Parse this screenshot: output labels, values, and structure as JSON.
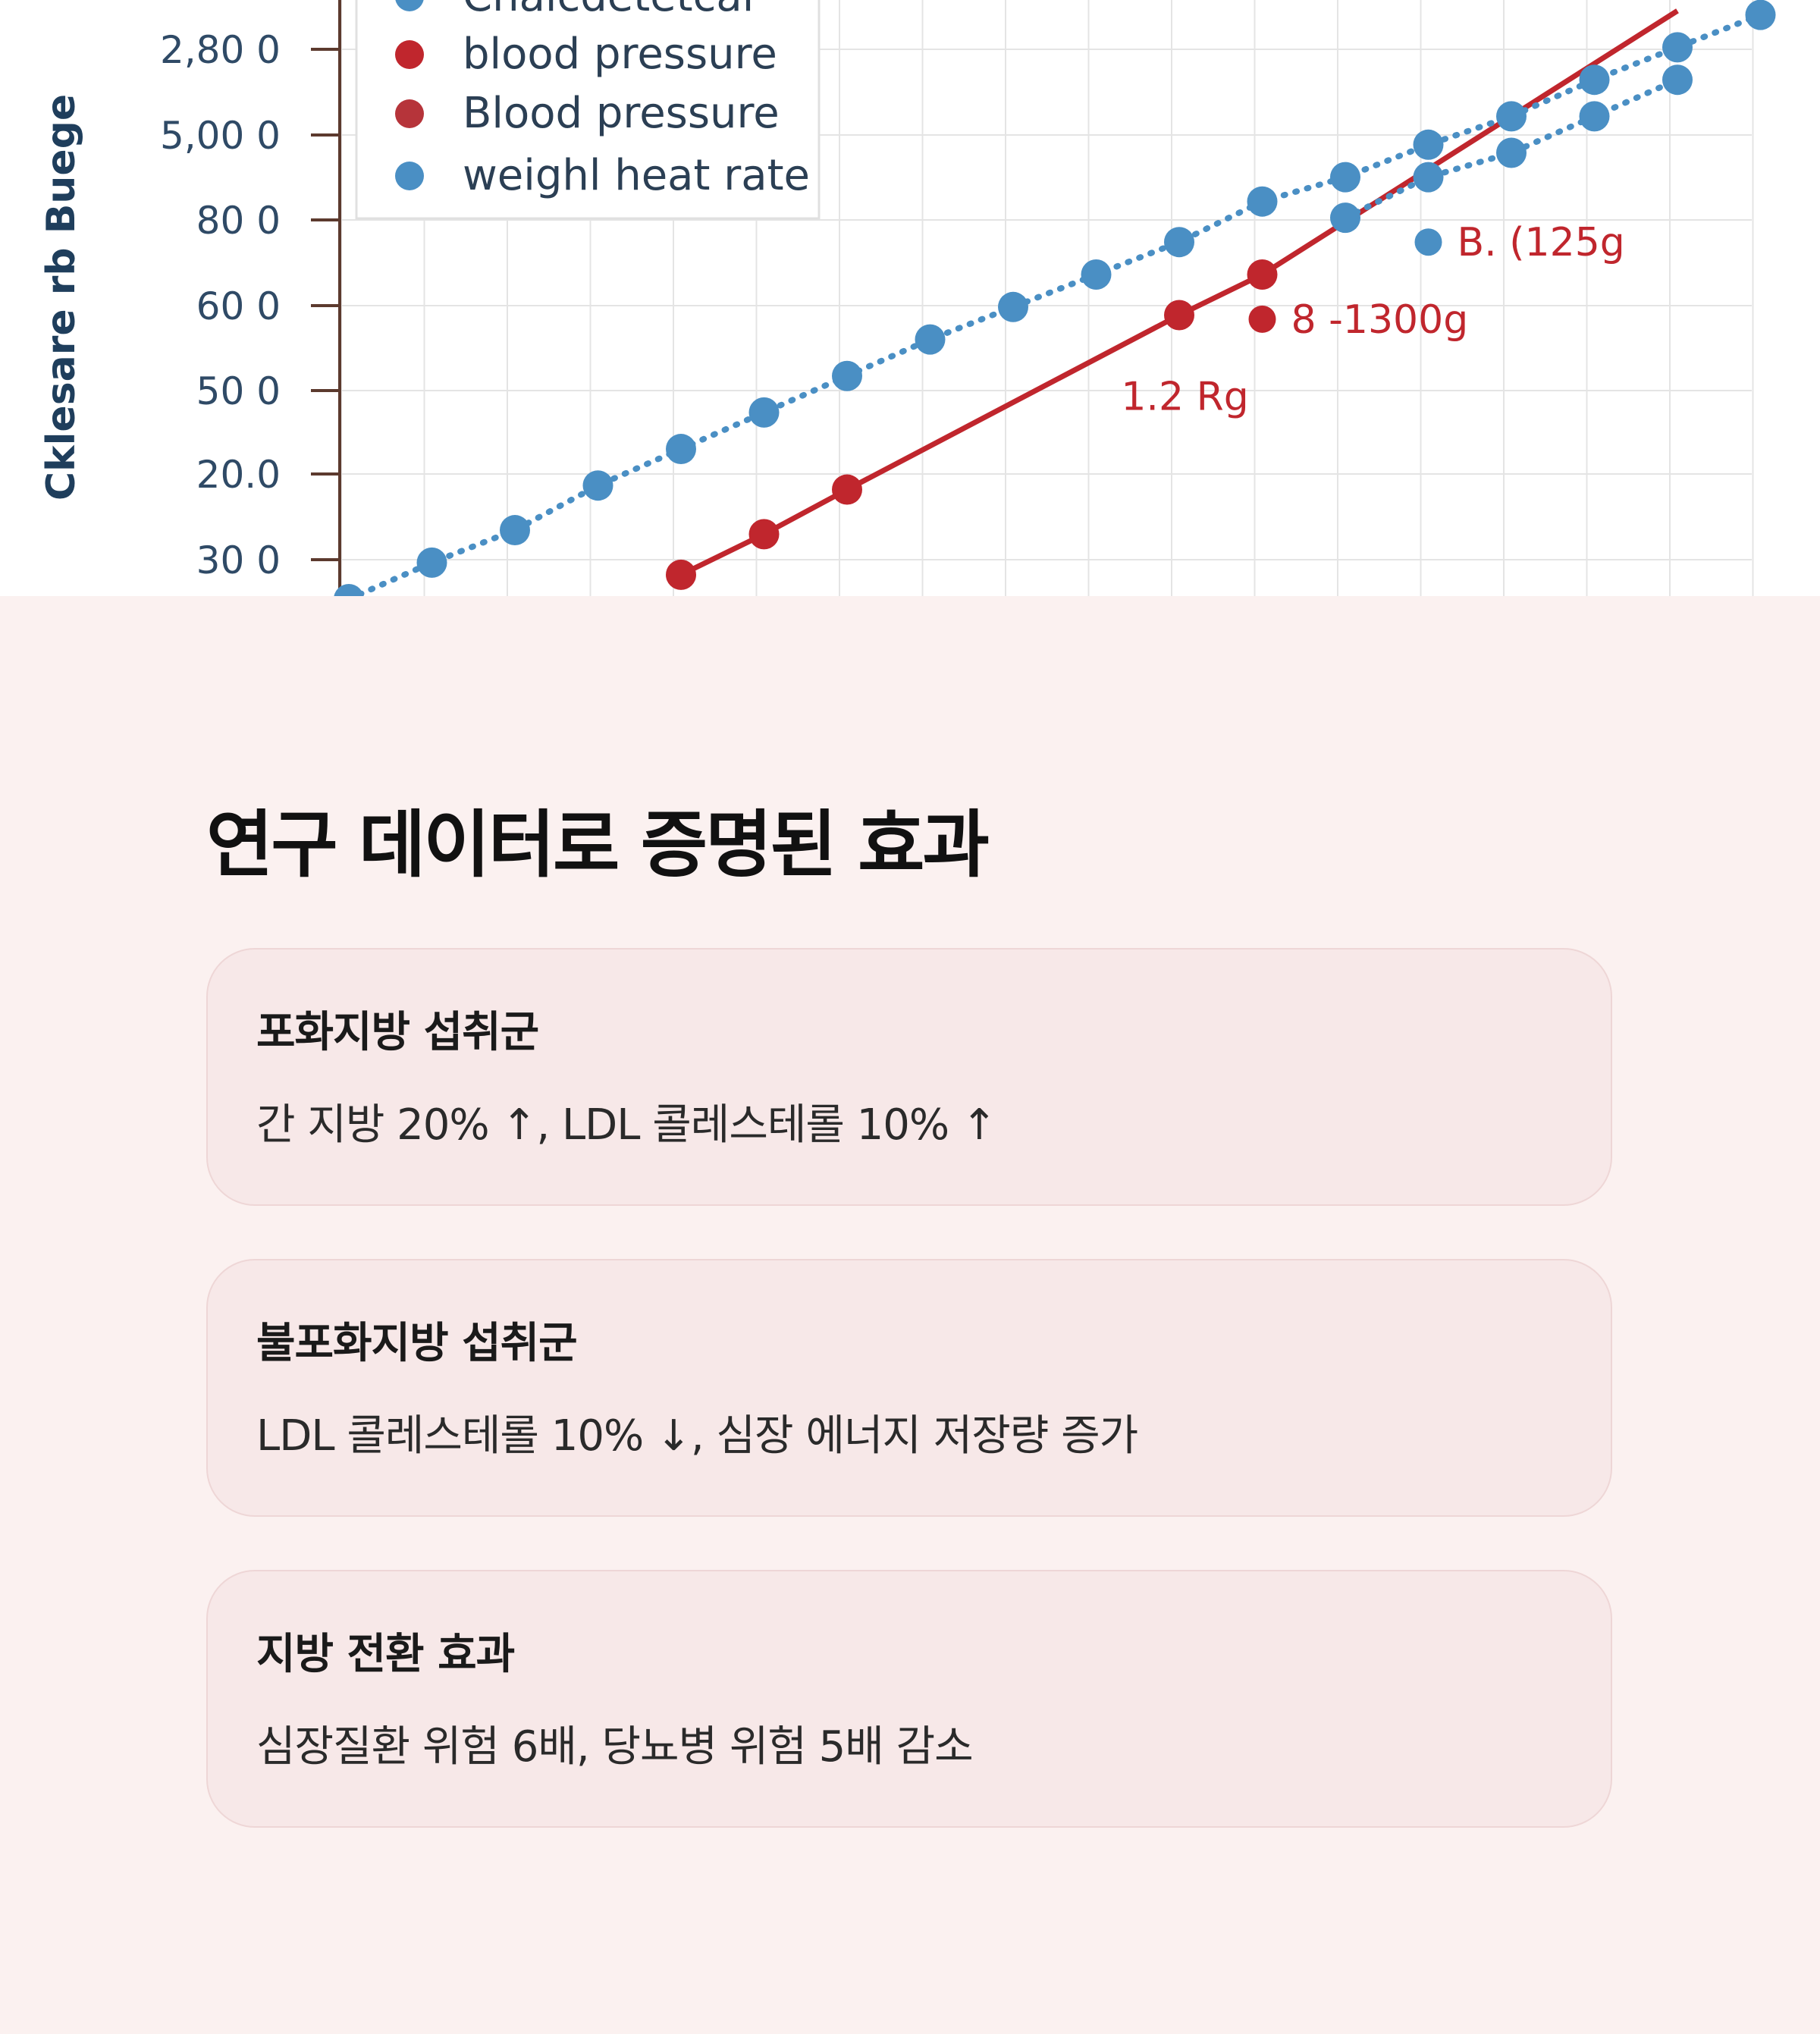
{
  "chart_data": {
    "type": "scatter",
    "ylabel": "Cklesare rb Buege",
    "y_ticks": [
      "2,80 0",
      "5,00 0",
      "80 0",
      "60 0",
      "50 0",
      "20.0",
      "30 0"
    ],
    "legend": {
      "placement": "top-left",
      "entries": [
        {
          "label": "Cnalcdetetcal",
          "color": "#4a8fc4"
        },
        {
          "label": "blood pressure",
          "color": "#c0262d"
        },
        {
          "label": "Blood pressure",
          "color": "#b6343a"
        },
        {
          "label": "weighl heat rate",
          "color": "#4a8fc4"
        }
      ]
    },
    "grid": true,
    "series": [
      {
        "name": "blood pressure",
        "color": "#c0262d",
        "line": "solid",
        "x": [
          4,
          5,
          6,
          10,
          11
        ],
        "y": [
          0.3,
          0.8,
          1.35,
          3.5,
          4.0
        ]
      },
      {
        "name": "weighl heat rate",
        "color": "#4a8fc4",
        "line": "dotted",
        "x": [
          0,
          1,
          2,
          3,
          4,
          5,
          6,
          7,
          8,
          9,
          10,
          11,
          12,
          13,
          14,
          15,
          16,
          17
        ],
        "y": [
          0,
          0.45,
          0.85,
          1.4,
          1.85,
          2.3,
          2.75,
          3.2,
          3.6,
          4.0,
          4.4,
          4.9,
          5.2,
          5.6,
          5.95,
          6.4,
          6.8,
          7.2
        ]
      },
      {
        "name": "",
        "color": "#4a8fc4",
        "line": "dotted",
        "x": [
          12,
          13,
          14,
          15,
          16
        ],
        "y": [
          4.7,
          5.2,
          5.5,
          5.95,
          6.4
        ]
      }
    ],
    "red_line_end": {
      "x": 16,
      "y": 7.25
    },
    "annotations": [
      {
        "text": "B. (125g",
        "color": "#c0262d",
        "marker_color": "#4a8fc4",
        "x": 13,
        "y": 4.4
      },
      {
        "text": "8 -1300g",
        "color": "#c0262d",
        "marker_color": "#c0262d",
        "x": 11,
        "y": 3.45
      },
      {
        "text": "1.2 Rg",
        "color": "#c0262d",
        "marker_color": null,
        "x": 9.3,
        "y": 2.5
      }
    ]
  },
  "section": {
    "title": "연구 데이터로 증명된 효과",
    "cards": [
      {
        "title": "포화지방 섭취군",
        "body": "간 지방 20% ↑, LDL 콜레스테롤 10% ↑"
      },
      {
        "title": "불포화지방 섭취군",
        "body": "LDL 콜레스테롤 10% ↓, 심장 에너지 저장량 증가"
      },
      {
        "title": "지방 전환 효과",
        "body": "심장질환 위험 6배, 당뇨병 위험 5배 감소"
      }
    ]
  }
}
